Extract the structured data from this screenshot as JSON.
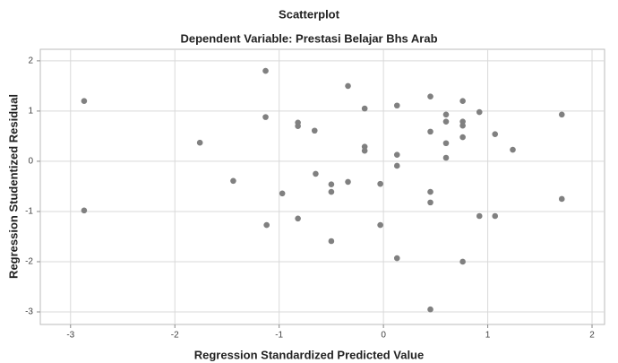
{
  "chart_data": {
    "type": "scatter",
    "title": "Scatterplot",
    "subtitle": "Dependent Variable: Prestasi Belajar Bhs Arab",
    "x_label": "Regression Standardized Predicted Value",
    "y_label": "Regression Studentized Residual",
    "color": "#808080",
    "grid": true,
    "xlim": [
      -3.29,
      2.12
    ],
    "ylim": [
      -3.25,
      2.23
    ],
    "xticks": [
      -3,
      -2,
      -1,
      0,
      1,
      2
    ],
    "yticks": [
      -3,
      -2,
      -1,
      0,
      1,
      2
    ],
    "x": [
      -2.87,
      -2.87,
      -1.76,
      -1.44,
      -1.13,
      -1.13,
      -1.12,
      -0.97,
      -0.82,
      -0.82,
      -0.82,
      -0.66,
      -0.65,
      -0.5,
      -0.5,
      -0.5,
      -0.34,
      -0.34,
      -0.18,
      -0.18,
      -0.18,
      -0.03,
      -0.03,
      0.13,
      0.13,
      0.13,
      0.13,
      0.45,
      0.45,
      0.45,
      0.45,
      0.45,
      0.6,
      0.6,
      0.6,
      0.6,
      0.76,
      0.76,
      0.76,
      0.76,
      0.76,
      0.92,
      0.92,
      1.07,
      1.07,
      1.24,
      1.71,
      1.71
    ],
    "values": [
      1.2,
      -0.98,
      0.37,
      -0.39,
      1.8,
      0.88,
      -1.27,
      -0.64,
      0.77,
      0.7,
      -1.14,
      0.61,
      -0.25,
      -0.46,
      -0.61,
      -1.59,
      1.5,
      -0.41,
      1.05,
      0.29,
      0.21,
      -0.45,
      -1.27,
      1.11,
      0.13,
      -0.09,
      -1.93,
      1.29,
      0.59,
      -0.61,
      -0.82,
      -2.95,
      0.93,
      0.79,
      0.36,
      0.07,
      1.2,
      0.79,
      0.71,
      0.48,
      -2.0,
      0.98,
      -1.09,
      0.54,
      -1.09,
      0.23,
      0.93,
      -0.75
    ]
  }
}
